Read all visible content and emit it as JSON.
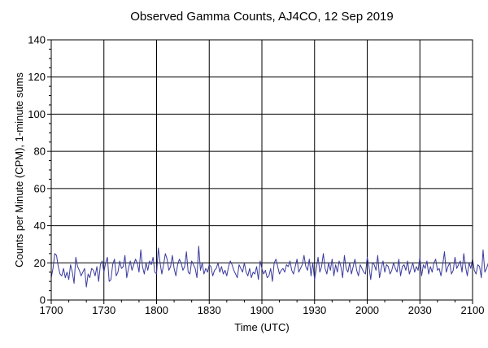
{
  "chart_data": {
    "type": "line",
    "title": "Observed Gamma Counts, AJ4CO, 12 Sep 2019",
    "xlabel": "Time (UTC)",
    "ylabel": "Counts per Minute (CPM), 1-minute sums",
    "xlim": [
      "1700",
      "2100"
    ],
    "ylim": [
      0,
      140
    ],
    "x_ticks": [
      "1700",
      "1730",
      "1800",
      "1830",
      "1900",
      "1930",
      "2000",
      "2030",
      "2100"
    ],
    "y_ticks": [
      "0",
      "20",
      "40",
      "60",
      "80",
      "100",
      "120",
      "140"
    ],
    "grid": true,
    "legend": "none",
    "series": [
      {
        "color": "#3a3a9e",
        "x_start": "1700",
        "interval_minutes": 1,
        "values": [
          12,
          17,
          25,
          24,
          18,
          14,
          13,
          17,
          12,
          15,
          11,
          19,
          15,
          9,
          23,
          18,
          16,
          13,
          15,
          17,
          7,
          14,
          12,
          17,
          16,
          13,
          18,
          10,
          19,
          21,
          15,
          20,
          23,
          10,
          11,
          19,
          22,
          13,
          15,
          21,
          17,
          18,
          24,
          12,
          17,
          21,
          16,
          19,
          22,
          20,
          15,
          27,
          18,
          14,
          20,
          16,
          21,
          19,
          23,
          15,
          14,
          28,
          20,
          14,
          19,
          25,
          22,
          16,
          18,
          24,
          17,
          13,
          19,
          22,
          20,
          16,
          18,
          26,
          15,
          14,
          21,
          19,
          17,
          12,
          29,
          16,
          20,
          14,
          17,
          15,
          19,
          18,
          13,
          16,
          17,
          20,
          15,
          18,
          14,
          16,
          13,
          18,
          21,
          19,
          16,
          14,
          12,
          19,
          17,
          15,
          20,
          15,
          13,
          17,
          12,
          15,
          14,
          18,
          11,
          21,
          17,
          14,
          16,
          12,
          13,
          17,
          10,
          20,
          22,
          18,
          14,
          16,
          17,
          15,
          19,
          18,
          21,
          16,
          14,
          18,
          22,
          15,
          17,
          19,
          24,
          18,
          16,
          22,
          13,
          20,
          11,
          17,
          23,
          15,
          18,
          25,
          17,
          14,
          20,
          16,
          22,
          13,
          19,
          15,
          21,
          18,
          12,
          24,
          17,
          15,
          20,
          14,
          18,
          22,
          16,
          13,
          19,
          17,
          15,
          14,
          23,
          18,
          11,
          20,
          19,
          16,
          24,
          12,
          17,
          21,
          15,
          19,
          18,
          14,
          16,
          20,
          17,
          15,
          22,
          13,
          18,
          19,
          16,
          21,
          14,
          17,
          20,
          15,
          18,
          16,
          23,
          13,
          19,
          17,
          21,
          14,
          18,
          15,
          20,
          22,
          16,
          17,
          13,
          19,
          26,
          15,
          18,
          20,
          14,
          16,
          23,
          17,
          19,
          21,
          15,
          25,
          18,
          13,
          20,
          17,
          22,
          16,
          14,
          19,
          18,
          12,
          27,
          15,
          17,
          20,
          16,
          18,
          14,
          19,
          21,
          15,
          17,
          23,
          13,
          18,
          20,
          16,
          15,
          19,
          22,
          14,
          17,
          18,
          16,
          20,
          15,
          21,
          13,
          19,
          17,
          18,
          14,
          16,
          22,
          15,
          19,
          20,
          17,
          13,
          18,
          21,
          16,
          19,
          15,
          14,
          25,
          18,
          20,
          17,
          16,
          22,
          13,
          19,
          18,
          15,
          21,
          17,
          14,
          20,
          16,
          18,
          24,
          15,
          19,
          17,
          22,
          13,
          18,
          20,
          16,
          15,
          19,
          21,
          14,
          17,
          29,
          16,
          19,
          18,
          15,
          22,
          17,
          13,
          20,
          18,
          16,
          21,
          14,
          19,
          17,
          15,
          23,
          18,
          16,
          20,
          14,
          19,
          17,
          22,
          15,
          18,
          16,
          14,
          21,
          19,
          17,
          15,
          20,
          18,
          16,
          13,
          24,
          27,
          19,
          17,
          15,
          22,
          18,
          16,
          20,
          14,
          19,
          17,
          21,
          23,
          15,
          18,
          16,
          20,
          22,
          14,
          17,
          19,
          15,
          21,
          18,
          16,
          14,
          20,
          17,
          15,
          23,
          18,
          16,
          19,
          17,
          22,
          20,
          18,
          19,
          21,
          17,
          19,
          18,
          20
        ]
      }
    ]
  }
}
